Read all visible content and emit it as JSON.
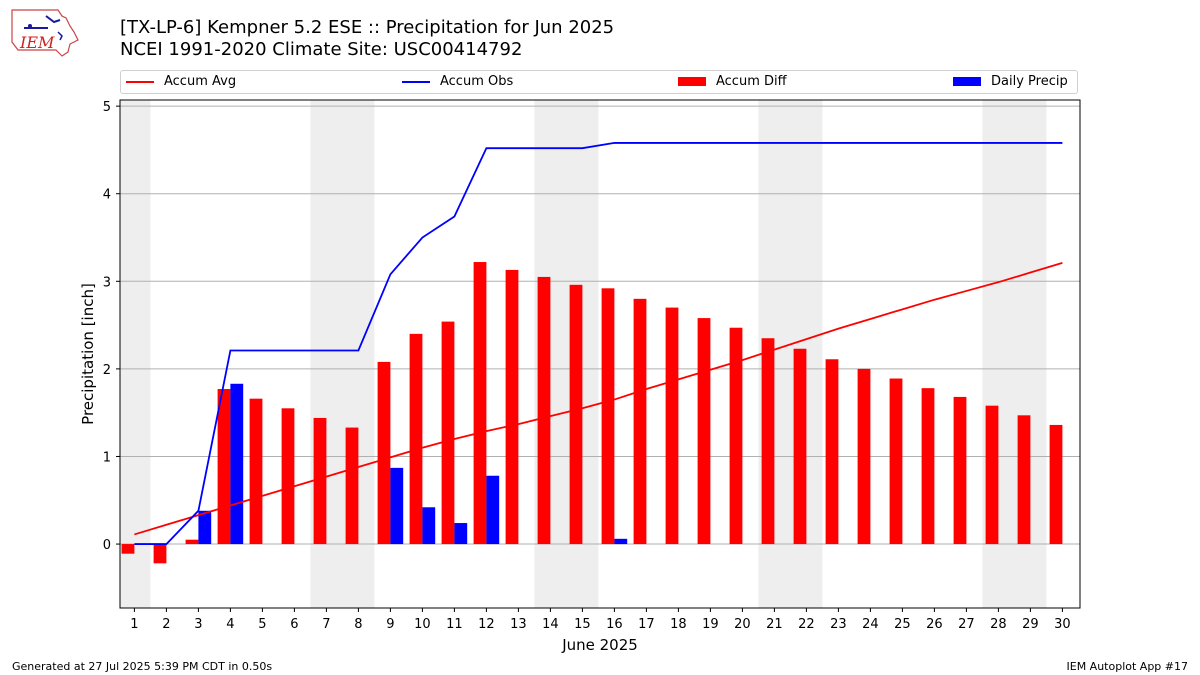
{
  "header": {
    "title_line1": "[TX-LP-6] Kempner 5.2 ESE :: Precipitation for Jun 2025",
    "title_line2": "NCEI 1991-2020 Climate Site: USC00414792",
    "logo_text": "IEM"
  },
  "footer": {
    "generated": "Generated at 27 Jul 2025 5:39 PM CDT in 0.50s",
    "app": "IEM Autoplot App #17"
  },
  "legend": {
    "avg": "Accum Avg",
    "obs": "Accum Obs",
    "diff": "Accum Diff",
    "daily": "Daily Precip"
  },
  "colors": {
    "avg": "#ff0000",
    "obs": "#0000ff",
    "diff": "#ff0000",
    "daily": "#0000ff",
    "weekend": "#eeeeee",
    "grid": "#b0b0b0"
  },
  "chart_data": {
    "type": "bar",
    "xlabel": "June 2025",
    "ylabel": "Precipitation [inch]",
    "ylim": [
      -0.73,
      5.07
    ],
    "yticks": [
      0,
      1,
      2,
      3,
      4,
      5
    ],
    "grid": true,
    "legend_position": "top",
    "x": [
      1,
      2,
      3,
      4,
      5,
      6,
      7,
      8,
      9,
      10,
      11,
      12,
      13,
      14,
      15,
      16,
      17,
      18,
      19,
      20,
      21,
      22,
      23,
      24,
      25,
      26,
      27,
      28,
      29,
      30
    ],
    "weekend_days": [
      1,
      7,
      8,
      14,
      15,
      21,
      22,
      28,
      29
    ],
    "series": [
      {
        "name": "Accum Avg",
        "kind": "line",
        "values": [
          0.11,
          0.22,
          0.33,
          0.44,
          0.55,
          0.66,
          0.77,
          0.88,
          0.99,
          1.1,
          1.2,
          1.29,
          1.37,
          1.46,
          1.55,
          1.65,
          1.77,
          1.88,
          1.99,
          2.1,
          2.22,
          2.34,
          2.46,
          2.57,
          2.68,
          2.79,
          2.89,
          2.99,
          3.1,
          3.21
        ]
      },
      {
        "name": "Accum Obs",
        "kind": "line",
        "values": [
          0.0,
          0.0,
          0.38,
          2.21,
          2.21,
          2.21,
          2.21,
          2.21,
          3.08,
          3.5,
          3.74,
          4.52,
          4.52,
          4.52,
          4.52,
          4.58,
          4.58,
          4.58,
          4.58,
          4.58,
          4.58,
          4.58,
          4.58,
          4.58,
          4.58,
          4.58,
          4.58,
          4.58,
          4.58,
          4.58
        ]
      },
      {
        "name": "Accum Diff",
        "kind": "bar",
        "values": [
          -0.11,
          -0.22,
          0.05,
          1.77,
          1.66,
          1.55,
          1.44,
          1.33,
          2.08,
          2.4,
          2.54,
          3.22,
          3.13,
          3.05,
          2.96,
          2.92,
          2.8,
          2.7,
          2.58,
          2.47,
          2.35,
          2.23,
          2.11,
          2.0,
          1.89,
          1.78,
          1.68,
          1.58,
          1.47,
          1.36
        ]
      },
      {
        "name": "Daily Precip",
        "kind": "bar",
        "values": [
          0,
          0,
          0.38,
          1.83,
          0,
          0,
          0,
          0,
          0.87,
          0.42,
          0.24,
          0.78,
          0,
          0,
          0,
          0.06,
          0,
          0,
          0,
          0,
          0,
          0,
          0,
          0,
          0,
          0,
          0,
          0,
          0,
          0
        ]
      }
    ]
  }
}
